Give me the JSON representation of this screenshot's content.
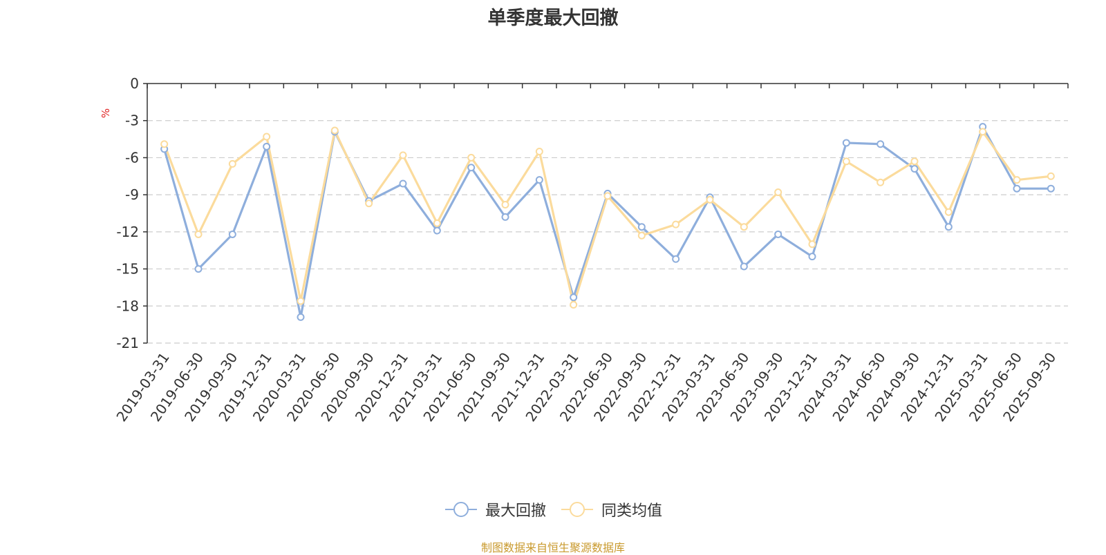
{
  "title": "单季度最大回撤",
  "source_note": "制图数据来自恒生聚源数据库",
  "colors": {
    "series_1": "#8eaedc",
    "series_2": "#fbdb9c",
    "unit": "#e02020",
    "grid": "#cccccc",
    "axis": "#333333"
  },
  "chart_data": {
    "type": "line",
    "ylabel": "%",
    "ylim": [
      -21,
      0
    ],
    "yticks": [
      0,
      -3,
      -6,
      -9,
      -12,
      -15,
      -18,
      -21
    ],
    "grid": "dashed horizontal",
    "legend_position": "bottom",
    "x": [
      "2019-03-31",
      "2019-06-30",
      "2019-09-30",
      "2019-12-31",
      "2020-03-31",
      "2020-06-30",
      "2020-09-30",
      "2020-12-31",
      "2021-03-31",
      "2021-06-30",
      "2021-09-30",
      "2021-12-31",
      "2022-03-31",
      "2022-06-30",
      "2022-09-30",
      "2022-12-31",
      "2023-03-31",
      "2023-06-30",
      "2023-09-30",
      "2023-12-31",
      "2024-03-31",
      "2024-06-30",
      "2024-09-30",
      "2024-12-31",
      "2025-03-31",
      "2025-06-30",
      "2025-09-30"
    ],
    "series": [
      {
        "name": "最大回撤",
        "values": [
          -5.3,
          -15.0,
          -12.2,
          -5.1,
          -18.9,
          -3.9,
          -9.5,
          -8.1,
          -11.9,
          -6.8,
          -10.8,
          -7.8,
          -17.3,
          -8.9,
          -11.6,
          -14.2,
          -9.2,
          -14.8,
          -12.2,
          -14.0,
          -4.8,
          -4.9,
          -6.9,
          -11.6,
          -3.5,
          -8.5,
          -8.5
        ]
      },
      {
        "name": "同类均值",
        "values": [
          -4.9,
          -12.2,
          -6.5,
          -4.3,
          -17.6,
          -3.8,
          -9.7,
          -5.8,
          -11.3,
          -6.0,
          -9.8,
          -5.5,
          -17.9,
          -9.1,
          -12.3,
          -11.4,
          -9.4,
          -11.6,
          -8.8,
          -13.0,
          -6.3,
          -8.0,
          -6.3,
          -10.4,
          -3.9,
          -7.8,
          -7.5
        ]
      }
    ]
  }
}
